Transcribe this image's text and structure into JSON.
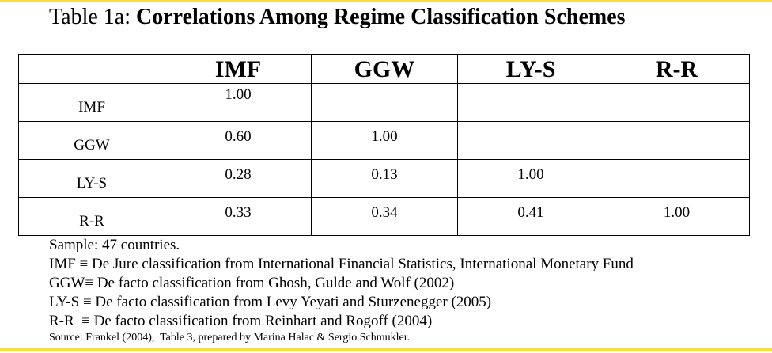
{
  "title": {
    "prefix": "Table 1a: ",
    "main": "Correlations Among Regime Classification Schemes"
  },
  "table": {
    "columns": [
      "",
      "IMF",
      "GGW",
      "LY-S",
      "R-R"
    ],
    "rows": [
      {
        "label": "IMF",
        "values": [
          "1.00",
          "",
          "",
          ""
        ]
      },
      {
        "label": "GGW",
        "values": [
          "0.60",
          "1.00",
          "",
          ""
        ]
      },
      {
        "label": "LY-S",
        "values": [
          "0.28",
          "0.13",
          "1.00",
          ""
        ]
      },
      {
        "label": "R-R",
        "values": [
          "0.33",
          "0.34",
          "0.41",
          "1.00"
        ]
      }
    ]
  },
  "notes": [
    "Sample: 47 countries.",
    "IMF ≡ De Jure classification from International Financial Statistics, International Monetary Fund",
    "GGW≡ De facto classification from Ghosh, Gulde and Wolf (2002)",
    "LY-S ≡ De facto classification from Levy Yeyati and Sturzenegger (2005)",
    "R-R  ≡ De facto classification from Reinhart and Rogoff (2004)"
  ],
  "source": "Source: Frankel (2004),  Table 3, prepared by Marina Halac & Sergio Schmukler.",
  "colors": {
    "accent_rule": "#f5e042"
  }
}
